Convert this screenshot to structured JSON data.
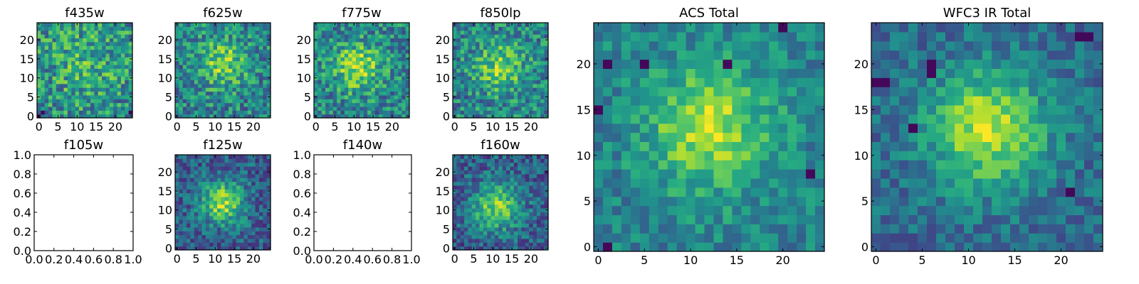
{
  "chart_data": [
    {
      "type": "heatmap",
      "title": "f435w",
      "has_data": true,
      "xticks": [
        0,
        5,
        10,
        15,
        20
      ],
      "yticks": [
        0,
        5,
        10,
        15,
        20
      ],
      "xlim": [
        -0.5,
        24.5
      ],
      "ylim": [
        -0.5,
        24.5
      ],
      "grid_size": [
        25,
        25
      ],
      "seed": 11,
      "blob_center": [
        12,
        14
      ],
      "blob_sigma": 6,
      "blob_amp": 0.15,
      "noise": 0.55,
      "base": 0.5,
      "dark_pixels": [
        [
          0,
          0
        ],
        [
          1,
          1
        ],
        [
          24,
          1
        ]
      ]
    },
    {
      "type": "heatmap",
      "title": "f625w",
      "has_data": true,
      "xticks": [
        0,
        5,
        10,
        15,
        20
      ],
      "yticks": [
        0,
        5,
        10,
        15,
        20
      ],
      "xlim": [
        -0.5,
        24.5
      ],
      "ylim": [
        -0.5,
        24.5
      ],
      "grid_size": [
        25,
        25
      ],
      "seed": 23,
      "blob_center": [
        12,
        14
      ],
      "blob_sigma": 4.5,
      "blob_amp": 0.35,
      "noise": 0.5,
      "base": 0.45,
      "dark_pixels": []
    },
    {
      "type": "heatmap",
      "title": "f775w",
      "has_data": true,
      "xticks": [
        0,
        5,
        10,
        15,
        20
      ],
      "yticks": [
        0,
        5,
        10,
        15,
        20
      ],
      "xlim": [
        -0.5,
        24.5
      ],
      "ylim": [
        -0.5,
        24.5
      ],
      "grid_size": [
        25,
        25
      ],
      "seed": 37,
      "blob_center": [
        11,
        13
      ],
      "blob_sigma": 4.5,
      "blob_amp": 0.4,
      "noise": 0.5,
      "base": 0.45,
      "dark_pixels": []
    },
    {
      "type": "heatmap",
      "title": "f850lp",
      "has_data": true,
      "xticks": [
        0,
        5,
        10,
        15,
        20
      ],
      "yticks": [
        0,
        5,
        10,
        15,
        20
      ],
      "xlim": [
        -0.5,
        24.5
      ],
      "ylim": [
        -0.5,
        24.5
      ],
      "grid_size": [
        25,
        25
      ],
      "seed": 41,
      "blob_center": [
        12,
        13
      ],
      "blob_sigma": 4.5,
      "blob_amp": 0.35,
      "noise": 0.5,
      "base": 0.45,
      "dark_pixels": []
    },
    {
      "type": "empty",
      "title": "f105w",
      "has_data": false,
      "xticks": [
        "0.0",
        "0.2",
        "0.4",
        "0.6",
        "0.8",
        "1.0"
      ],
      "yticks": [
        "0.0",
        "0.2",
        "0.4",
        "0.6",
        "0.8",
        "1.0"
      ],
      "xlim": [
        0,
        1
      ],
      "ylim": [
        0,
        1
      ]
    },
    {
      "type": "heatmap",
      "title": "f125w",
      "has_data": true,
      "xticks": [
        0,
        5,
        10,
        15,
        20
      ],
      "yticks": [
        0,
        5,
        10,
        15,
        20
      ],
      "xlim": [
        -0.5,
        24.5
      ],
      "ylim": [
        -0.5,
        24.5
      ],
      "grid_size": [
        25,
        25
      ],
      "seed": 53,
      "blob_center": [
        12,
        12
      ],
      "blob_sigma": 4,
      "blob_amp": 0.55,
      "noise": 0.4,
      "base": 0.3,
      "dark_pixels": []
    },
    {
      "type": "empty",
      "title": "f140w",
      "has_data": false,
      "xticks": [
        "0.0",
        "0.2",
        "0.4",
        "0.6",
        "0.8",
        "1.0"
      ],
      "yticks": [
        "0.0",
        "0.2",
        "0.4",
        "0.6",
        "0.8",
        "1.0"
      ],
      "xlim": [
        0,
        1
      ],
      "ylim": [
        0,
        1
      ]
    },
    {
      "type": "heatmap",
      "title": "f160w",
      "has_data": true,
      "xticks": [
        0,
        5,
        10,
        15,
        20
      ],
      "yticks": [
        0,
        5,
        10,
        15,
        20
      ],
      "xlim": [
        -0.5,
        24.5
      ],
      "ylim": [
        -0.5,
        24.5
      ],
      "grid_size": [
        25,
        25
      ],
      "seed": 67,
      "blob_center": [
        11,
        11
      ],
      "blob_sigma": 4.5,
      "blob_amp": 0.5,
      "noise": 0.4,
      "base": 0.3,
      "dark_pixels": []
    },
    {
      "type": "heatmap",
      "title": "ACS Total",
      "has_data": true,
      "xticks": [
        0,
        5,
        10,
        15,
        20
      ],
      "yticks": [
        0,
        5,
        10,
        15,
        20
      ],
      "xlim": [
        -0.5,
        24.5
      ],
      "ylim": [
        -0.5,
        24.5
      ],
      "grid_size": [
        25,
        25
      ],
      "seed": 79,
      "blob_center": [
        12,
        13
      ],
      "blob_sigma": 4.5,
      "blob_amp": 0.45,
      "noise": 0.32,
      "base": 0.45,
      "dark_pixels": [
        [
          0,
          15
        ],
        [
          1,
          20
        ],
        [
          1,
          0
        ],
        [
          5,
          20
        ],
        [
          14,
          20
        ],
        [
          23,
          8
        ],
        [
          20,
          24
        ]
      ]
    },
    {
      "type": "heatmap",
      "title": "WFC3 IR Total",
      "has_data": true,
      "xticks": [
        0,
        5,
        10,
        15,
        20
      ],
      "yticks": [
        0,
        5,
        10,
        15,
        20
      ],
      "xlim": [
        -0.5,
        24.5
      ],
      "ylim": [
        -0.5,
        24.5
      ],
      "grid_size": [
        25,
        25
      ],
      "seed": 97,
      "blob_center": [
        12,
        13
      ],
      "blob_sigma": 4.5,
      "blob_amp": 0.55,
      "noise": 0.3,
      "base": 0.35,
      "dark_pixels": [
        [
          0,
          18
        ],
        [
          1,
          18
        ],
        [
          6,
          20
        ],
        [
          6,
          19
        ],
        [
          4,
          13
        ],
        [
          22,
          23
        ],
        [
          23,
          23
        ],
        [
          21,
          6
        ]
      ]
    }
  ]
}
